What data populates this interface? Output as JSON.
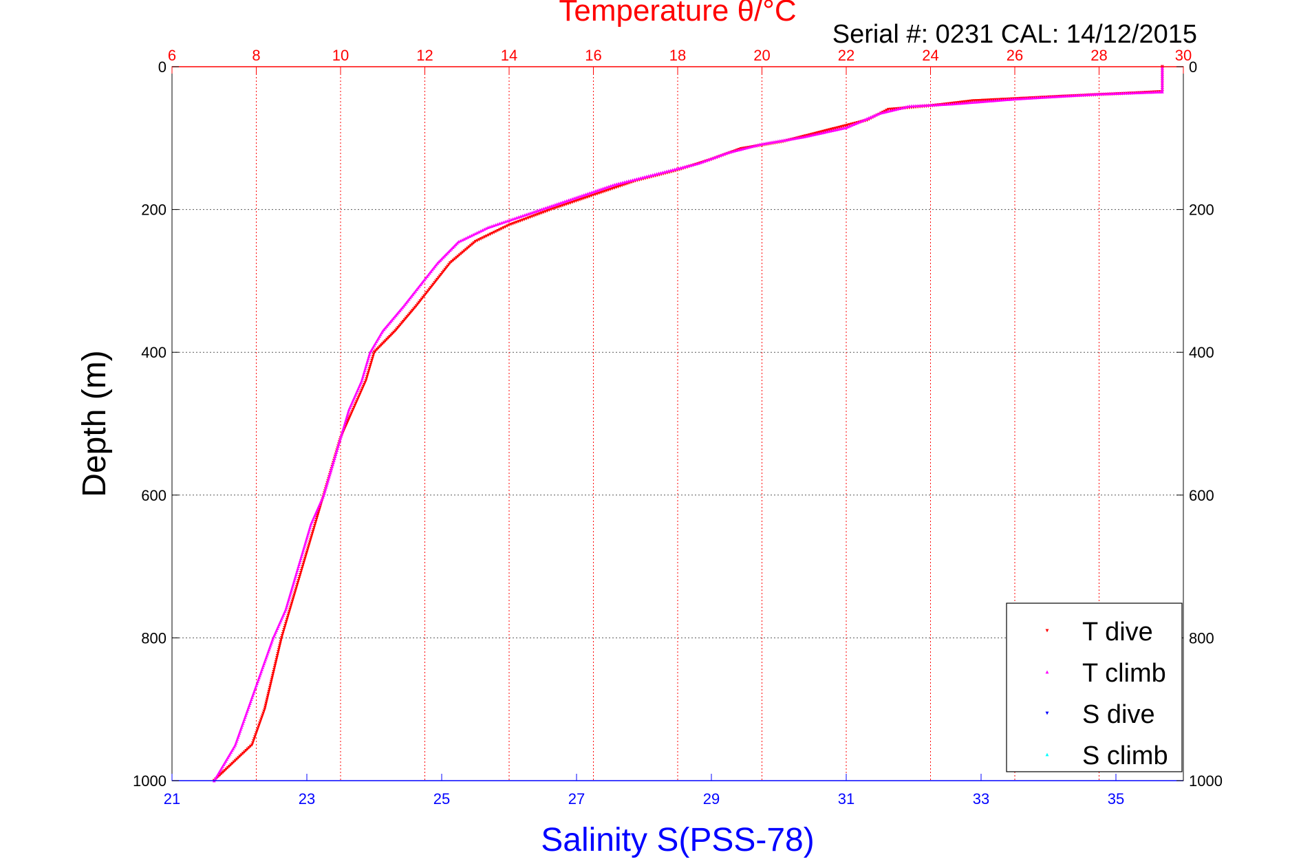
{
  "chart_data": {
    "type": "scatter",
    "title": "Temperature θ/°C",
    "subtitle": "Serial #: 0231  CAL: 14/12/2015",
    "ylabel": "Depth (m)",
    "xlabel": "Salinity S(PSS-78)",
    "grid": true,
    "legend_position": "bottom-right",
    "colors": {
      "temperature_axis": "#ff0000",
      "salinity_axis": "#0000ff",
      "t_dive": "#ff0000",
      "t_climb": "#ff00ff",
      "s_dive": "#0000ff",
      "s_climb": "#00ffff"
    },
    "y_axis": {
      "range": [
        0,
        1000
      ],
      "reversed": true,
      "ticks": [
        0,
        200,
        400,
        600,
        800,
        1000
      ],
      "tick_labels": [
        "0",
        "200",
        "400",
        "600",
        "800",
        "1000"
      ]
    },
    "temperature_axis": {
      "range": [
        6,
        30
      ],
      "ticks": [
        6,
        8,
        10,
        12,
        14,
        16,
        18,
        20,
        22,
        24,
        26,
        28,
        30
      ],
      "tick_labels": [
        "6",
        "8",
        "10",
        "12",
        "14",
        "16",
        "18",
        "20",
        "22",
        "24",
        "26",
        "28",
        "30"
      ]
    },
    "salinity_axis": {
      "range": [
        21,
        36
      ],
      "ticks": [
        21,
        23,
        25,
        27,
        29,
        31,
        33,
        35
      ],
      "tick_labels": [
        "21",
        "23",
        "25",
        "27",
        "29",
        "31",
        "33",
        "35"
      ]
    },
    "legend": [
      "T dive",
      "T climb",
      "S dive",
      "S climb"
    ],
    "series": [
      {
        "name": "T dive",
        "axis": "temperature",
        "marker": "triangle-down",
        "points": [
          [
            29.5,
            0
          ],
          [
            29.5,
            20
          ],
          [
            29.5,
            35
          ],
          [
            28.5,
            38
          ],
          [
            27.0,
            42
          ],
          [
            25.0,
            48
          ],
          [
            24.0,
            55
          ],
          [
            23.0,
            60
          ],
          [
            22.5,
            75
          ],
          [
            21.5,
            90
          ],
          [
            20.5,
            105
          ],
          [
            19.5,
            115
          ],
          [
            18.8,
            130
          ],
          [
            18.0,
            145
          ],
          [
            17.0,
            160
          ],
          [
            16.0,
            180
          ],
          [
            15.0,
            200
          ],
          [
            14.0,
            222
          ],
          [
            13.2,
            245
          ],
          [
            12.6,
            275
          ],
          [
            12.2,
            305
          ],
          [
            11.8,
            335
          ],
          [
            11.3,
            370
          ],
          [
            10.8,
            400
          ],
          [
            10.6,
            440
          ],
          [
            10.3,
            480
          ],
          [
            10.0,
            520
          ],
          [
            9.8,
            560
          ],
          [
            9.6,
            600
          ],
          [
            9.4,
            640
          ],
          [
            9.2,
            680
          ],
          [
            9.0,
            720
          ],
          [
            8.8,
            760
          ],
          [
            8.6,
            800
          ],
          [
            8.4,
            850
          ],
          [
            8.2,
            900
          ],
          [
            7.9,
            950
          ],
          [
            7.0,
            1000
          ]
        ]
      },
      {
        "name": "T climb",
        "axis": "temperature",
        "marker": "triangle-up",
        "points": [
          [
            29.5,
            0
          ],
          [
            29.5,
            20
          ],
          [
            29.5,
            35
          ],
          [
            28.0,
            38
          ],
          [
            26.0,
            45
          ],
          [
            24.5,
            52
          ],
          [
            23.5,
            55
          ],
          [
            22.8,
            65
          ],
          [
            22.0,
            85
          ],
          [
            21.0,
            98
          ],
          [
            20.0,
            108
          ],
          [
            19.2,
            120
          ],
          [
            18.5,
            135
          ],
          [
            17.5,
            150
          ],
          [
            16.5,
            165
          ],
          [
            15.5,
            185
          ],
          [
            14.5,
            205
          ],
          [
            13.5,
            225
          ],
          [
            12.8,
            245
          ],
          [
            12.3,
            275
          ],
          [
            11.9,
            305
          ],
          [
            11.5,
            335
          ],
          [
            11.0,
            370
          ],
          [
            10.7,
            400
          ],
          [
            10.5,
            440
          ],
          [
            10.2,
            480
          ],
          [
            10.0,
            520
          ],
          [
            9.8,
            560
          ],
          [
            9.6,
            600
          ],
          [
            9.3,
            640
          ],
          [
            9.1,
            680
          ],
          [
            8.9,
            720
          ],
          [
            8.7,
            760
          ],
          [
            8.4,
            800
          ],
          [
            8.1,
            850
          ],
          [
            7.8,
            900
          ],
          [
            7.5,
            950
          ],
          [
            7.0,
            1000
          ]
        ]
      }
    ]
  }
}
